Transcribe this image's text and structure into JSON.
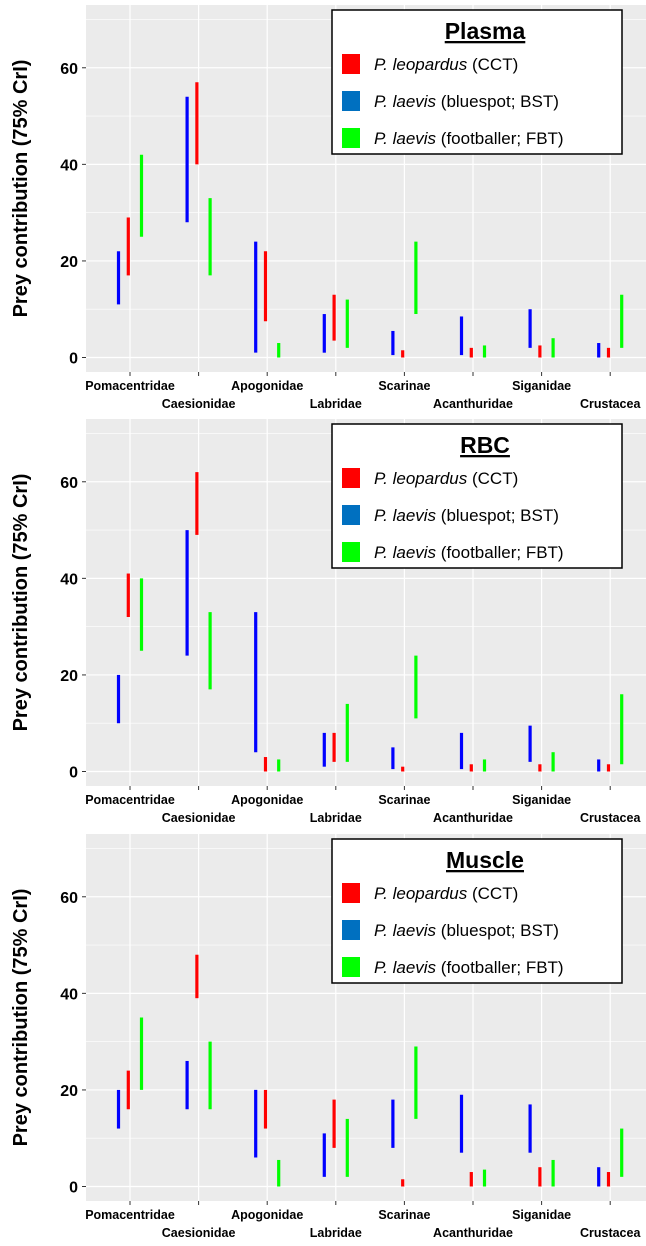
{
  "colors": {
    "ccd": "#ff0000",
    "bst": "#0000ff",
    "fbt": "#00ff00",
    "panel_bg": "#ebebeb",
    "grid": "#ffffff"
  },
  "legend_series": [
    {
      "italic": "P. leopardus",
      "rest": " (CCT)",
      "swatch": "#ff0000"
    },
    {
      "italic": "P. laevis",
      "rest": " (bluespot; BST)",
      "swatch": "#0070c0"
    },
    {
      "italic": "P. laevis",
      "rest": " (footballer; FBT)",
      "swatch": "#00ff00"
    }
  ],
  "chart_data": [
    {
      "type": "interval",
      "title": "Plasma",
      "ylabel": "Prey contribution (75% CrI)",
      "ylim": [
        -3,
        73
      ],
      "yticks": [
        0,
        20,
        40,
        60
      ],
      "grid": true,
      "legend_position": "top-right",
      "categories": [
        "Pomacentridae",
        "Caesionidae",
        "Apogonidae",
        "Labridae",
        "Scarinae",
        "Acanthuridae",
        "Siganidae",
        "Crustacea"
      ],
      "series": [
        {
          "name": "P. leopardus (CCT)",
          "intervals": [
            [
              17,
              29
            ],
            [
              40,
              57
            ],
            [
              7.5,
              22
            ],
            [
              3.5,
              13
            ],
            [
              0,
              1.5
            ],
            [
              0,
              2
            ],
            [
              0,
              2.5
            ],
            [
              0,
              2
            ]
          ]
        },
        {
          "name": "P. laevis (bluespot; BST)",
          "intervals": [
            [
              11,
              22
            ],
            [
              28,
              54
            ],
            [
              1,
              24
            ],
            [
              1,
              9
            ],
            [
              0.5,
              5.5
            ],
            [
              0.5,
              8.5
            ],
            [
              2,
              10
            ],
            [
              0,
              3
            ]
          ]
        },
        {
          "name": "P. laevis (footballer; FBT)",
          "intervals": [
            [
              25,
              42
            ],
            [
              17,
              33
            ],
            [
              0,
              3
            ],
            [
              2,
              12
            ],
            [
              9,
              24
            ],
            [
              0,
              2.5
            ],
            [
              0,
              4
            ],
            [
              2,
              13
            ]
          ]
        }
      ]
    },
    {
      "type": "interval",
      "title": "RBC",
      "ylabel": "Prey contribution (75% CrI)",
      "ylim": [
        -3,
        73
      ],
      "yticks": [
        0,
        20,
        40,
        60
      ],
      "grid": true,
      "legend_position": "top-right",
      "categories": [
        "Pomacentridae",
        "Caesionidae",
        "Apogonidae",
        "Labridae",
        "Scarinae",
        "Acanthuridae",
        "Siganidae",
        "Crustacea"
      ],
      "series": [
        {
          "name": "P. leopardus (CCT)",
          "intervals": [
            [
              32,
              41
            ],
            [
              49,
              62
            ],
            [
              0,
              3
            ],
            [
              2,
              8
            ],
            [
              0,
              1
            ],
            [
              0,
              1.5
            ],
            [
              0,
              1.5
            ],
            [
              0,
              1.5
            ]
          ]
        },
        {
          "name": "P. laevis (bluespot; BST)",
          "intervals": [
            [
              10,
              20
            ],
            [
              24,
              50
            ],
            [
              4,
              33
            ],
            [
              1,
              8
            ],
            [
              0.5,
              5
            ],
            [
              0.5,
              8
            ],
            [
              2,
              9.5
            ],
            [
              0,
              2.5
            ]
          ]
        },
        {
          "name": "P. laevis (footballer; FBT)",
          "intervals": [
            [
              25,
              40
            ],
            [
              17,
              33
            ],
            [
              0,
              2.5
            ],
            [
              2,
              14
            ],
            [
              11,
              24
            ],
            [
              0,
              2.5
            ],
            [
              0,
              4
            ],
            [
              1.5,
              16
            ]
          ]
        }
      ]
    },
    {
      "type": "interval",
      "title": "Muscle",
      "ylabel": "Prey contribution (75% CrI)",
      "ylim": [
        -3,
        73
      ],
      "yticks": [
        0,
        20,
        40,
        60
      ],
      "grid": true,
      "legend_position": "top-right",
      "categories": [
        "Pomacentridae",
        "Caesionidae",
        "Apogonidae",
        "Labridae",
        "Scarinae",
        "Acanthuridae",
        "Siganidae",
        "Crustacea"
      ],
      "series": [
        {
          "name": "P. leopardus (CCT)",
          "intervals": [
            [
              16,
              24
            ],
            [
              39,
              48
            ],
            [
              12,
              20
            ],
            [
              8,
              18
            ],
            [
              0,
              1.5
            ],
            [
              0,
              3
            ],
            [
              0,
              4
            ],
            [
              0,
              3
            ]
          ]
        },
        {
          "name": "P. laevis (bluespot; BST)",
          "intervals": [
            [
              12,
              20
            ],
            [
              16,
              26
            ],
            [
              6,
              20
            ],
            [
              2,
              11
            ],
            [
              8,
              18
            ],
            [
              7,
              19
            ],
            [
              7,
              17
            ],
            [
              0,
              4
            ]
          ]
        },
        {
          "name": "P. laevis (footballer; FBT)",
          "intervals": [
            [
              20,
              35
            ],
            [
              16,
              30
            ],
            [
              0,
              5.5
            ],
            [
              2,
              14
            ],
            [
              14,
              29
            ],
            [
              0,
              3.5
            ],
            [
              0,
              5.5
            ],
            [
              2,
              12
            ]
          ]
        }
      ]
    }
  ]
}
